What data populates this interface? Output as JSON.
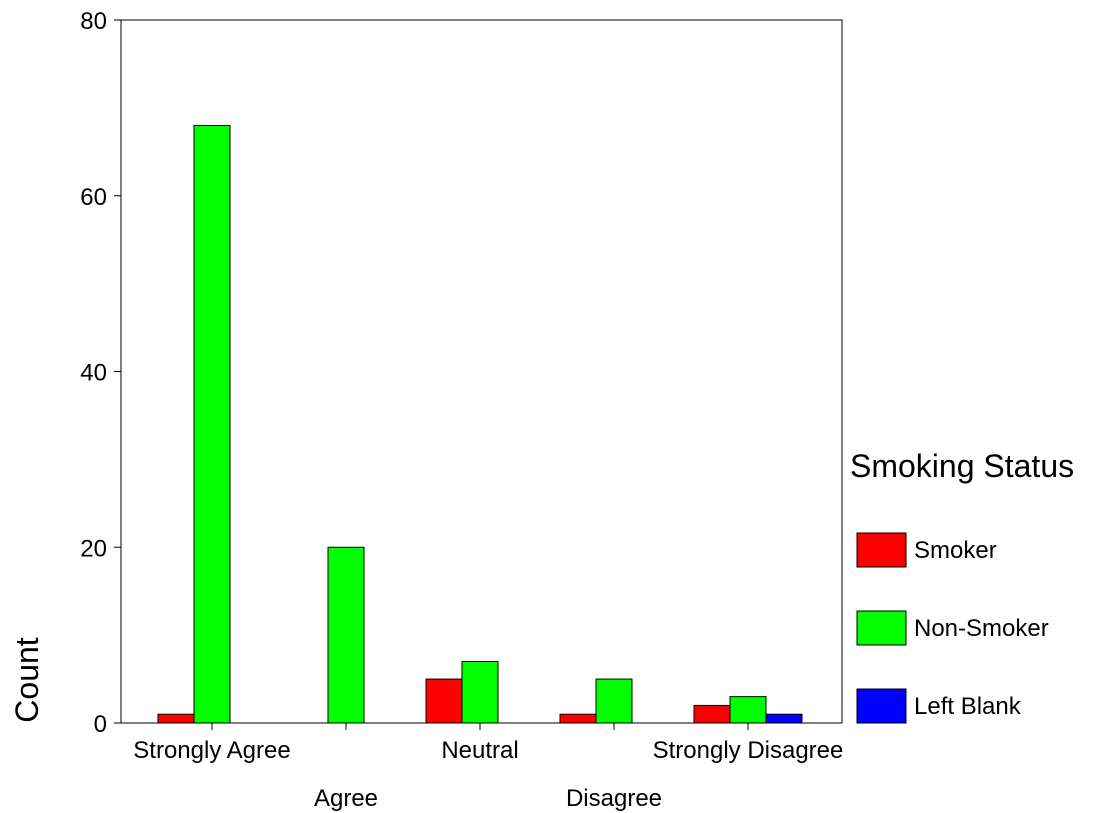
{
  "chart_data": {
    "type": "bar",
    "categories": [
      "Strongly Agree",
      "Agree",
      "Neutral",
      "Disagree",
      "Strongly Disagree"
    ],
    "series": [
      {
        "name": "Smoker",
        "color": "#ff0000",
        "values": [
          1,
          0,
          5,
          1,
          2
        ]
      },
      {
        "name": "Non-Smoker",
        "color": "#00ff00",
        "values": [
          68,
          20,
          7,
          5,
          3
        ]
      },
      {
        "name": "Left Blank",
        "color": "#0000ff",
        "values": [
          0,
          0,
          0,
          0,
          1
        ]
      }
    ],
    "ylabel": "Count",
    "ylim": [
      0,
      80
    ],
    "yticks": [
      0,
      20,
      40,
      60,
      80
    ],
    "legend": {
      "title": "Smoking Status",
      "placement": "right"
    },
    "grid": false
  }
}
